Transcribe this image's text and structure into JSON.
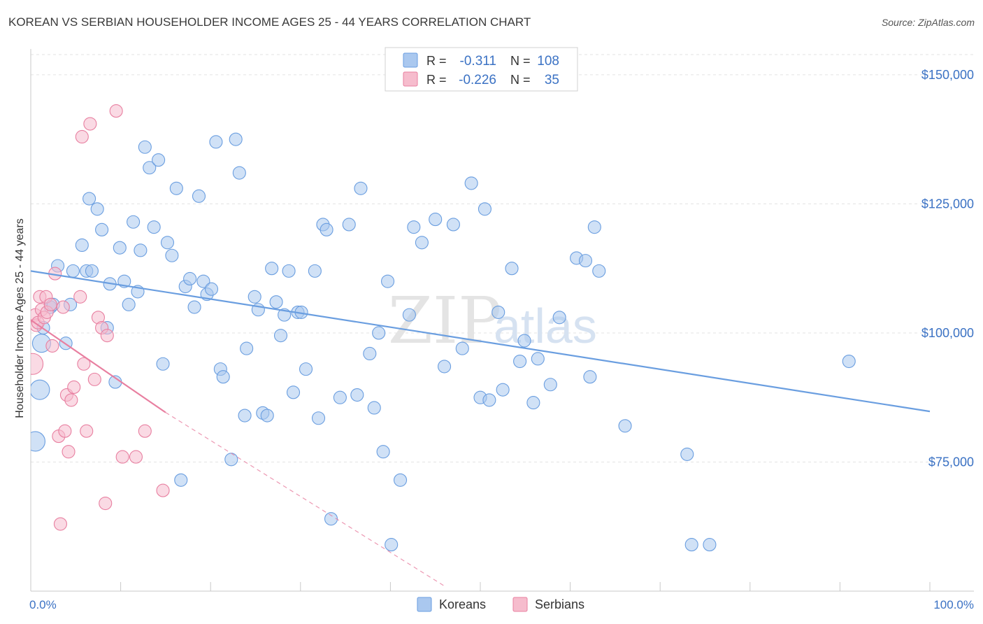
{
  "title": "KOREAN VS SERBIAN HOUSEHOLDER INCOME AGES 25 - 44 YEARS CORRELATION CHART",
  "source": "Source: ZipAtlas.com",
  "watermark": {
    "zip": "ZIP",
    "atlas": "atlas"
  },
  "chart_data": {
    "type": "scatter",
    "xlabel": "",
    "ylabel": "Householder Income Ages 25 - 44 years",
    "xlim": [
      0,
      100
    ],
    "ylim": [
      50000,
      155000
    ],
    "x_tick_labels": {
      "left": "0.0%",
      "right": "100.0%"
    },
    "y_ticks": [
      75000,
      100000,
      125000,
      150000
    ],
    "y_tick_labels": [
      "$75,000",
      "$100,000",
      "$125,000",
      "$150,000"
    ],
    "grid": true,
    "legend_position": "bottom-center",
    "stats_box": [
      {
        "r_label": "R =",
        "r": "-0.311",
        "n_label": "N =",
        "n": "108"
      },
      {
        "r_label": "R =",
        "r": "-0.226",
        "n_label": "N =",
        "n": "35"
      }
    ],
    "series": [
      {
        "name": "Koreans",
        "color": "#6a9ee0",
        "fill": "#aac8ef",
        "trend": {
          "x": [
            0,
            100
          ],
          "y": [
            112000,
            84800
          ]
        },
        "points": [
          [
            0.5,
            79000,
            14
          ],
          [
            1.0,
            89000,
            14
          ],
          [
            1.2,
            98000,
            13
          ],
          [
            1.4,
            101000,
            9
          ],
          [
            2.2,
            105000,
            9
          ],
          [
            2.5,
            105500,
            9
          ],
          [
            3.0,
            113000,
            9
          ],
          [
            3.9,
            98000,
            9
          ],
          [
            4.4,
            105500,
            9
          ],
          [
            4.7,
            112000,
            9
          ],
          [
            5.7,
            117000,
            9
          ],
          [
            6.2,
            112000,
            9
          ],
          [
            6.5,
            126000,
            9
          ],
          [
            6.8,
            112000,
            9
          ],
          [
            7.4,
            124000,
            9
          ],
          [
            7.9,
            120000,
            9
          ],
          [
            8.5,
            101000,
            9
          ],
          [
            8.8,
            109500,
            9
          ],
          [
            9.4,
            90500,
            9
          ],
          [
            9.9,
            116500,
            9
          ],
          [
            10.4,
            110000,
            9
          ],
          [
            10.9,
            105500,
            9
          ],
          [
            11.4,
            121500,
            9
          ],
          [
            11.9,
            108000,
            9
          ],
          [
            12.2,
            116000,
            9
          ],
          [
            12.7,
            136000,
            9
          ],
          [
            13.2,
            132000,
            9
          ],
          [
            13.7,
            120500,
            9
          ],
          [
            14.2,
            133500,
            9
          ],
          [
            14.7,
            94000,
            9
          ],
          [
            15.2,
            117500,
            9
          ],
          [
            15.7,
            115000,
            9
          ],
          [
            16.2,
            128000,
            9
          ],
          [
            16.7,
            71500,
            9
          ],
          [
            17.2,
            109000,
            9
          ],
          [
            17.7,
            110500,
            9
          ],
          [
            18.2,
            105000,
            9
          ],
          [
            18.7,
            126500,
            9
          ],
          [
            19.2,
            110000,
            9
          ],
          [
            19.6,
            107500,
            9
          ],
          [
            20.1,
            108500,
            9
          ],
          [
            20.6,
            137000,
            9
          ],
          [
            21.1,
            93000,
            9
          ],
          [
            21.4,
            91500,
            9
          ],
          [
            22.3,
            75500,
            9
          ],
          [
            22.8,
            137500,
            9
          ],
          [
            23.2,
            131000,
            9
          ],
          [
            23.8,
            84000,
            9
          ],
          [
            24.0,
            97000,
            9
          ],
          [
            24.9,
            107000,
            9
          ],
          [
            25.3,
            104500,
            9
          ],
          [
            25.8,
            84500,
            9
          ],
          [
            26.3,
            84000,
            9
          ],
          [
            26.8,
            112500,
            9
          ],
          [
            27.3,
            106000,
            9
          ],
          [
            27.8,
            99500,
            9
          ],
          [
            28.2,
            103500,
            9
          ],
          [
            28.7,
            112000,
            9
          ],
          [
            29.2,
            88500,
            9
          ],
          [
            29.7,
            104000,
            9
          ],
          [
            30.1,
            104000,
            9
          ],
          [
            30.6,
            93000,
            9
          ],
          [
            31.6,
            112000,
            9
          ],
          [
            32.0,
            83500,
            9
          ],
          [
            32.5,
            121000,
            9
          ],
          [
            32.9,
            120000,
            9
          ],
          [
            33.4,
            64000,
            9
          ],
          [
            34.4,
            87500,
            9
          ],
          [
            35.4,
            121000,
            9
          ],
          [
            36.3,
            88000,
            9
          ],
          [
            36.7,
            128000,
            9
          ],
          [
            37.7,
            96000,
            9
          ],
          [
            38.2,
            85500,
            9
          ],
          [
            38.7,
            100000,
            9
          ],
          [
            39.2,
            77000,
            9
          ],
          [
            39.7,
            110000,
            9
          ],
          [
            40.1,
            59000,
            9
          ],
          [
            41.1,
            71500,
            9
          ],
          [
            42.1,
            103500,
            9
          ],
          [
            42.6,
            120500,
            9
          ],
          [
            43.5,
            117500,
            9
          ],
          [
            45.0,
            122000,
            9
          ],
          [
            46.0,
            93500,
            9
          ],
          [
            47.0,
            121000,
            9
          ],
          [
            48.0,
            97000,
            9
          ],
          [
            49.0,
            129000,
            9
          ],
          [
            50.0,
            87500,
            9
          ],
          [
            50.5,
            124000,
            9
          ],
          [
            51.0,
            87000,
            9
          ],
          [
            52.0,
            104000,
            9
          ],
          [
            52.5,
            89000,
            9
          ],
          [
            53.5,
            112500,
            9
          ],
          [
            54.4,
            94500,
            9
          ],
          [
            54.9,
            98500,
            9
          ],
          [
            55.9,
            86500,
            9
          ],
          [
            56.4,
            95000,
            9
          ],
          [
            57.8,
            90000,
            9
          ],
          [
            58.8,
            103000,
            9
          ],
          [
            60.7,
            114500,
            9
          ],
          [
            61.7,
            114000,
            9
          ],
          [
            62.7,
            120500,
            9
          ],
          [
            62.2,
            91500,
            9
          ],
          [
            63.2,
            112000,
            9
          ],
          [
            66.1,
            82000,
            9
          ],
          [
            73.0,
            76500,
            9
          ],
          [
            73.5,
            59000,
            9
          ],
          [
            75.5,
            59000,
            9
          ],
          [
            91.0,
            94500,
            9
          ]
        ]
      },
      {
        "name": "Serbians",
        "color": "#e87fa0",
        "fill": "#f6bccd",
        "trend": {
          "x": [
            0,
            15
          ],
          "y": [
            102500,
            84600
          ]
        },
        "trend_dashed": {
          "x": [
            15,
            46
          ],
          "y": [
            84600,
            51000
          ]
        },
        "points": [
          [
            0.2,
            94000,
            15
          ],
          [
            0.5,
            103500,
            9
          ],
          [
            0.6,
            101500,
            9
          ],
          [
            0.8,
            102000,
            9
          ],
          [
            1.0,
            107000,
            9
          ],
          [
            1.2,
            104500,
            9
          ],
          [
            1.5,
            103000,
            9
          ],
          [
            1.7,
            107000,
            9
          ],
          [
            1.8,
            104000,
            9
          ],
          [
            2.2,
            105500,
            9
          ],
          [
            2.4,
            97500,
            9
          ],
          [
            2.7,
            111500,
            9
          ],
          [
            3.1,
            80000,
            9
          ],
          [
            3.3,
            63000,
            9
          ],
          [
            3.6,
            105000,
            9
          ],
          [
            3.8,
            81000,
            9
          ],
          [
            4.0,
            88000,
            9
          ],
          [
            4.2,
            77000,
            9
          ],
          [
            4.5,
            87000,
            9
          ],
          [
            4.8,
            89500,
            9
          ],
          [
            5.5,
            107000,
            9
          ],
          [
            5.7,
            138000,
            9
          ],
          [
            5.9,
            94000,
            9
          ],
          [
            6.2,
            81000,
            9
          ],
          [
            6.6,
            140500,
            9
          ],
          [
            7.1,
            91000,
            9
          ],
          [
            7.5,
            103000,
            9
          ],
          [
            7.9,
            101000,
            9
          ],
          [
            8.3,
            67000,
            9
          ],
          [
            8.5,
            99500,
            9
          ],
          [
            9.5,
            143000,
            9
          ],
          [
            10.2,
            76000,
            9
          ],
          [
            11.7,
            76000,
            9
          ],
          [
            12.7,
            81000,
            9
          ],
          [
            14.7,
            69500,
            9
          ]
        ]
      }
    ]
  }
}
